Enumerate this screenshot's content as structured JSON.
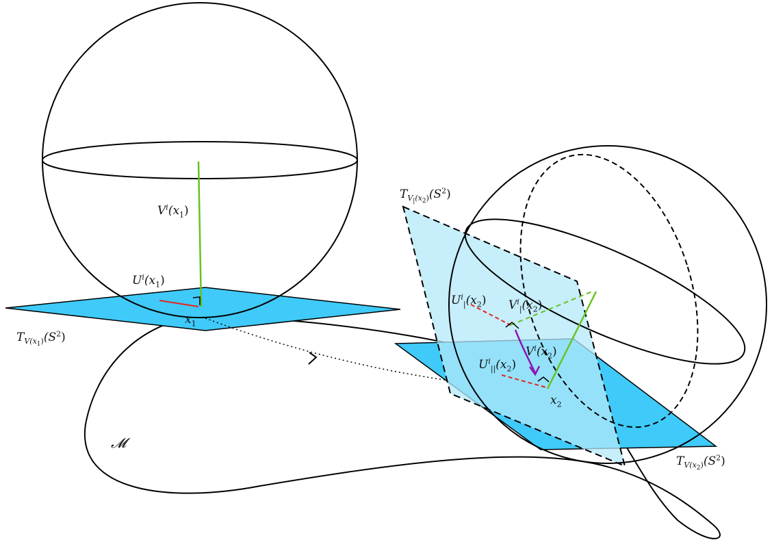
{
  "labels": {
    "manifold": "𝓜",
    "x1": {
      "var": "x",
      "sub": "1"
    },
    "x2": {
      "var": "x",
      "sub": "2"
    },
    "V_x1": {
      "var": "V",
      "sup": "i",
      "arg": "(x",
      "argsub": "1",
      "close": ")"
    },
    "U_x1": {
      "var": "U",
      "sup": "i",
      "arg": "(x",
      "argsub": "1",
      "close": ")"
    },
    "V_x2": {
      "var": "V",
      "sup": "i",
      "arg": "(x",
      "argsub": "2",
      "close": ")"
    },
    "Ubar_x2": {
      "var": "U",
      "sup": "i",
      "sub": "|",
      "arg": "(x",
      "argsub": "2",
      "close": ")"
    },
    "Vbar_x2": {
      "var": "V",
      "sup": "i",
      "sub": "|",
      "arg": "(x",
      "argsub": "2",
      "close": ")"
    },
    "Upar_x2": {
      "var": "U",
      "sup": "i",
      "sub": "||",
      "arg": "(x",
      "argsub": "2",
      "close": ")"
    },
    "T_Vx1": {
      "var": "T",
      "sub_a": "V(x",
      "sub_b": "1",
      "sub_c": ")",
      "tail": "(S",
      "pow": "2",
      "tail_close": ")"
    },
    "T_Vx2": {
      "var": "T",
      "sub_a": "V(x",
      "sub_b": "2",
      "sub_c": ")",
      "tail": "(S",
      "pow": "2",
      "tail_close": ")"
    },
    "T_Vbar_x2": {
      "var": "T",
      "sub_a": "V",
      "sub_bar": "|",
      "sub_paren": "(x",
      "sub_b": "2",
      "sub_c": ")",
      "tail": "(S",
      "pow": "2",
      "tail_close": ")"
    }
  },
  "colors": {
    "plane": "#3fcaf9",
    "plane_light": "#b3e8f9",
    "vector_V": "#67c31e",
    "vector_U": "#e5261f",
    "transport": "#8a15b5",
    "outline": "#000000"
  }
}
